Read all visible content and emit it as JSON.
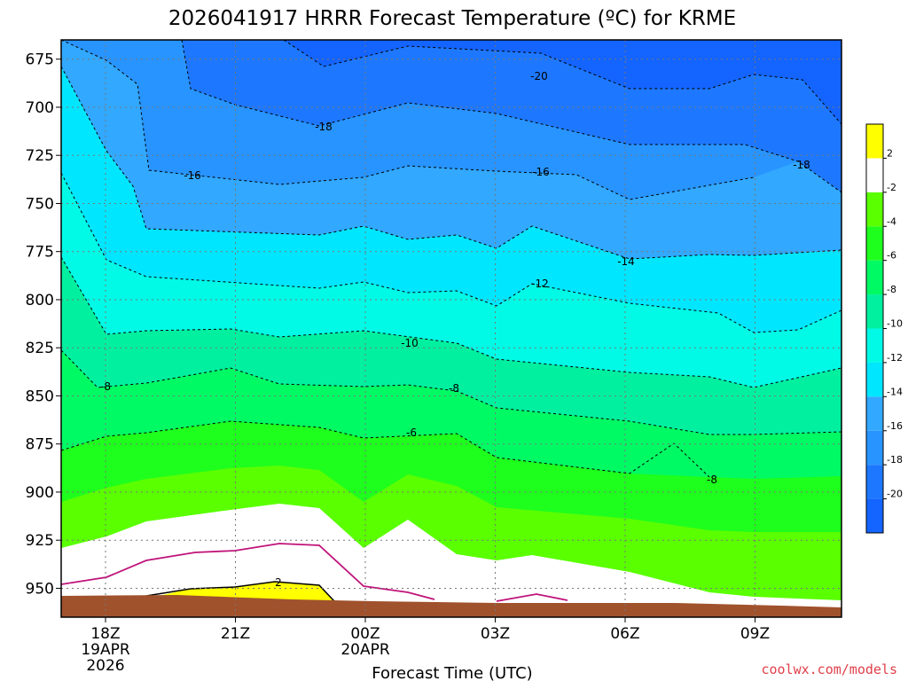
{
  "chart_data": {
    "type": "contour",
    "title": "2026041917 HRRR Forecast Temperature (ºC) for KRME",
    "xlabel": "Forecast Time (UTC)",
    "ylabel": "",
    "y_axis": "pressure (hPa), inverted",
    "ylim": [
      965,
      665
    ],
    "y_ticks": [
      "675",
      "700",
      "725",
      "750",
      "775",
      "800",
      "825",
      "850",
      "875",
      "900",
      "925",
      "950"
    ],
    "x_ticks": [
      {
        "label": "18Z",
        "sub1": "19APR",
        "sub2": "2026"
      },
      {
        "label": "21Z",
        "sub1": "",
        "sub2": ""
      },
      {
        "label": "00Z",
        "sub1": "20APR",
        "sub2": ""
      },
      {
        "label": "03Z",
        "sub1": "",
        "sub2": ""
      },
      {
        "label": "06Z",
        "sub1": "",
        "sub2": ""
      },
      {
        "label": "09Z",
        "sub1": "",
        "sub2": ""
      }
    ],
    "contour_labels": [
      "-20",
      "-18",
      "-16",
      "-16",
      "-18",
      "-14",
      "-12",
      "-10",
      "-8",
      "-8",
      "-8",
      "-6",
      "2"
    ],
    "colorbar": {
      "ticks": [
        "2",
        "-2",
        "-4",
        "-6",
        "-8",
        "-10",
        "-12",
        "-14",
        "-16",
        "-18",
        "-20"
      ],
      "colors": [
        "#1464ff",
        "#1e78ff",
        "#2894ff",
        "#32a8ff",
        "#00e6ff",
        "#00fae6",
        "#00f0a0",
        "#00fa64",
        "#1eff1e",
        "#5aff00",
        "#ffffff",
        "#ffff00"
      ]
    },
    "legend": "right colorbar",
    "grid": true
  },
  "credit": "coolwx.com/models"
}
